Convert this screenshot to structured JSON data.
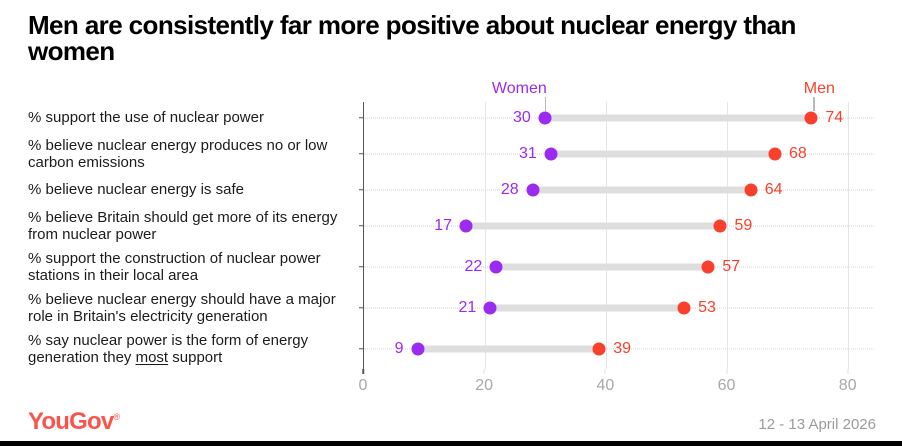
{
  "title": "Men are consistently far more positive about nuclear energy than women",
  "chart_data": {
    "type": "dumbbell",
    "orientation": "horizontal",
    "categories": [
      "% support the use of nuclear power",
      "% believe nuclear energy produces no or low carbon emissions",
      "% believe nuclear energy is safe",
      "% believe Britain should get more of its energy from nuclear power",
      "% support the construction of nuclear power stations in their local area",
      "% believe nuclear energy should have a major role in Britain's electricity generation",
      "% say nuclear power is the form of energy generation they most support"
    ],
    "underline": {
      "category_index": 6,
      "word": "most"
    },
    "series": [
      {
        "name": "Women",
        "color": "#9B2BF0",
        "values": [
          30,
          31,
          28,
          17,
          22,
          21,
          9
        ]
      },
      {
        "name": "Men",
        "color": "#F8402C",
        "values": [
          74,
          68,
          64,
          59,
          57,
          53,
          39
        ]
      }
    ],
    "xticks": [
      0,
      20,
      40,
      60,
      80
    ],
    "xlim": [
      0,
      85
    ],
    "grid": "vertical",
    "legend_position": "above-first-row"
  },
  "footer": {
    "logo_text": "YouGov",
    "trademark": "®",
    "date_range": "12 - 13 April 2026"
  },
  "colors": {
    "women": "#9B2BF0",
    "men": "#F8402C",
    "logo": "#F8564C",
    "connector": "#DEDEDE",
    "gridline": "#E5E5E5",
    "axis_text": "#A8A8A8"
  }
}
